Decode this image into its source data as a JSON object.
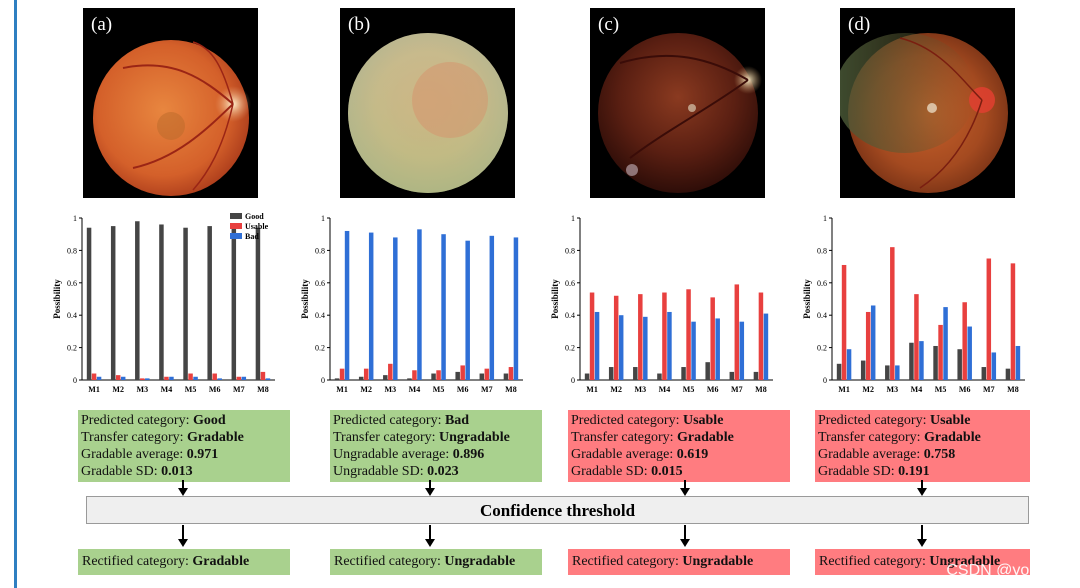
{
  "panels": [
    {
      "label": "(a)",
      "tone": "normal"
    },
    {
      "label": "(b)",
      "tone": "blurry"
    },
    {
      "label": "(c)",
      "tone": "dark"
    },
    {
      "label": "(d)",
      "tone": "shadow"
    }
  ],
  "info_boxes": [
    {
      "color": "green",
      "predicted_prefix": "Predicted category: ",
      "predicted_value": "Good",
      "transfer_prefix": "Transfer category: ",
      "transfer_value": "Gradable",
      "average_prefix": "Gradable average: ",
      "average_value": "0.971",
      "sd_prefix": "Gradable SD: ",
      "sd_value": "0.013"
    },
    {
      "color": "green",
      "predicted_prefix": "Predicted category: ",
      "predicted_value": "Bad",
      "transfer_prefix": "Transfer category: ",
      "transfer_value": "Ungradable",
      "average_prefix": "Ungradable average: ",
      "average_value": "0.896",
      "sd_prefix": "Ungradable SD: ",
      "sd_value": "0.023"
    },
    {
      "color": "red",
      "predicted_prefix": "Predicted category: ",
      "predicted_value": "Usable",
      "transfer_prefix": "Transfer category: ",
      "transfer_value": "Gradable",
      "average_prefix": "Gradable average: ",
      "average_value": "0.619",
      "sd_prefix": "Gradable SD: ",
      "sd_value": "0.015"
    },
    {
      "color": "red",
      "predicted_prefix": "Predicted category: ",
      "predicted_value": "Usable",
      "transfer_prefix": "Transfer category: ",
      "transfer_value": "Gradable",
      "average_prefix": "Gradable average: ",
      "average_value": "0.758",
      "sd_prefix": "Gradable SD: ",
      "sd_value": "0.191"
    }
  ],
  "threshold_label": "Confidence threshold",
  "rectified": [
    {
      "color": "green",
      "prefix": "Rectified category: ",
      "value": "Gradable"
    },
    {
      "color": "green",
      "prefix": "Rectified category: ",
      "value": "Ungradable"
    },
    {
      "color": "red",
      "prefix": "Rectified category: ",
      "value": "Ungradable"
    },
    {
      "color": "red",
      "prefix": "Rectified category: ",
      "value": "Ungradable"
    }
  ],
  "watermark": "CSDN @youcans",
  "colors": {
    "good": "#454545",
    "usable": "#e8403f",
    "bad": "#2f6fd6",
    "green_box": "#a9d18e",
    "red_box": "#ff7c80"
  },
  "chart_data": [
    {
      "type": "bar",
      "panel": "(a)",
      "ylabel": "Possibility",
      "ylim": [
        0,
        1
      ],
      "yticks": [
        "0",
        "0.2",
        "0.4",
        "0.6",
        "0.8",
        "1"
      ],
      "categories": [
        "M1",
        "M2",
        "M3",
        "M4",
        "M5",
        "M6",
        "M7",
        "M8"
      ],
      "legend": [
        "Good",
        "Usable",
        "Bad"
      ],
      "legend_position": "top-right",
      "series": [
        {
          "name": "Good",
          "values": [
            0.94,
            0.95,
            0.98,
            0.96,
            0.94,
            0.95,
            0.96,
            0.94
          ]
        },
        {
          "name": "Usable",
          "values": [
            0.04,
            0.03,
            0.01,
            0.02,
            0.04,
            0.04,
            0.02,
            0.05
          ]
        },
        {
          "name": "Bad",
          "values": [
            0.02,
            0.02,
            0.01,
            0.02,
            0.02,
            0.01,
            0.02,
            0.01
          ]
        }
      ]
    },
    {
      "type": "bar",
      "panel": "(b)",
      "ylabel": "Possibility",
      "ylim": [
        0,
        1
      ],
      "yticks": [
        "0",
        "0.2",
        "0.4",
        "0.6",
        "0.8",
        "1"
      ],
      "categories": [
        "M1",
        "M2",
        "M3",
        "M4",
        "M5",
        "M6",
        "M7",
        "M8"
      ],
      "series": [
        {
          "name": "Good",
          "values": [
            0.01,
            0.02,
            0.03,
            0.01,
            0.04,
            0.05,
            0.04,
            0.04
          ]
        },
        {
          "name": "Usable",
          "values": [
            0.07,
            0.07,
            0.1,
            0.06,
            0.06,
            0.09,
            0.07,
            0.08
          ]
        },
        {
          "name": "Bad",
          "values": [
            0.92,
            0.91,
            0.88,
            0.93,
            0.9,
            0.86,
            0.89,
            0.88
          ]
        }
      ]
    },
    {
      "type": "bar",
      "panel": "(c)",
      "ylabel": "Possibility",
      "ylim": [
        0,
        1
      ],
      "yticks": [
        "0",
        "0.2",
        "0.4",
        "0.6",
        "0.8",
        "1"
      ],
      "categories": [
        "M1",
        "M2",
        "M3",
        "M4",
        "M5",
        "M6",
        "M7",
        "M8"
      ],
      "series": [
        {
          "name": "Good",
          "values": [
            0.04,
            0.08,
            0.08,
            0.04,
            0.08,
            0.11,
            0.05,
            0.05
          ]
        },
        {
          "name": "Usable",
          "values": [
            0.54,
            0.52,
            0.53,
            0.54,
            0.56,
            0.51,
            0.59,
            0.54
          ]
        },
        {
          "name": "Bad",
          "values": [
            0.42,
            0.4,
            0.39,
            0.42,
            0.36,
            0.38,
            0.36,
            0.41
          ]
        }
      ]
    },
    {
      "type": "bar",
      "panel": "(d)",
      "ylabel": "Possibility",
      "ylim": [
        0,
        1
      ],
      "yticks": [
        "0",
        "0.2",
        "0.4",
        "0.6",
        "0.8",
        "1"
      ],
      "categories": [
        "M1",
        "M2",
        "M3",
        "M4",
        "M5",
        "M6",
        "M7",
        "M8"
      ],
      "series": [
        {
          "name": "Good",
          "values": [
            0.1,
            0.12,
            0.09,
            0.23,
            0.21,
            0.19,
            0.08,
            0.07
          ]
        },
        {
          "name": "Usable",
          "values": [
            0.71,
            0.42,
            0.82,
            0.53,
            0.34,
            0.48,
            0.75,
            0.72
          ]
        },
        {
          "name": "Bad",
          "values": [
            0.19,
            0.46,
            0.09,
            0.24,
            0.45,
            0.33,
            0.17,
            0.21
          ]
        }
      ]
    }
  ]
}
